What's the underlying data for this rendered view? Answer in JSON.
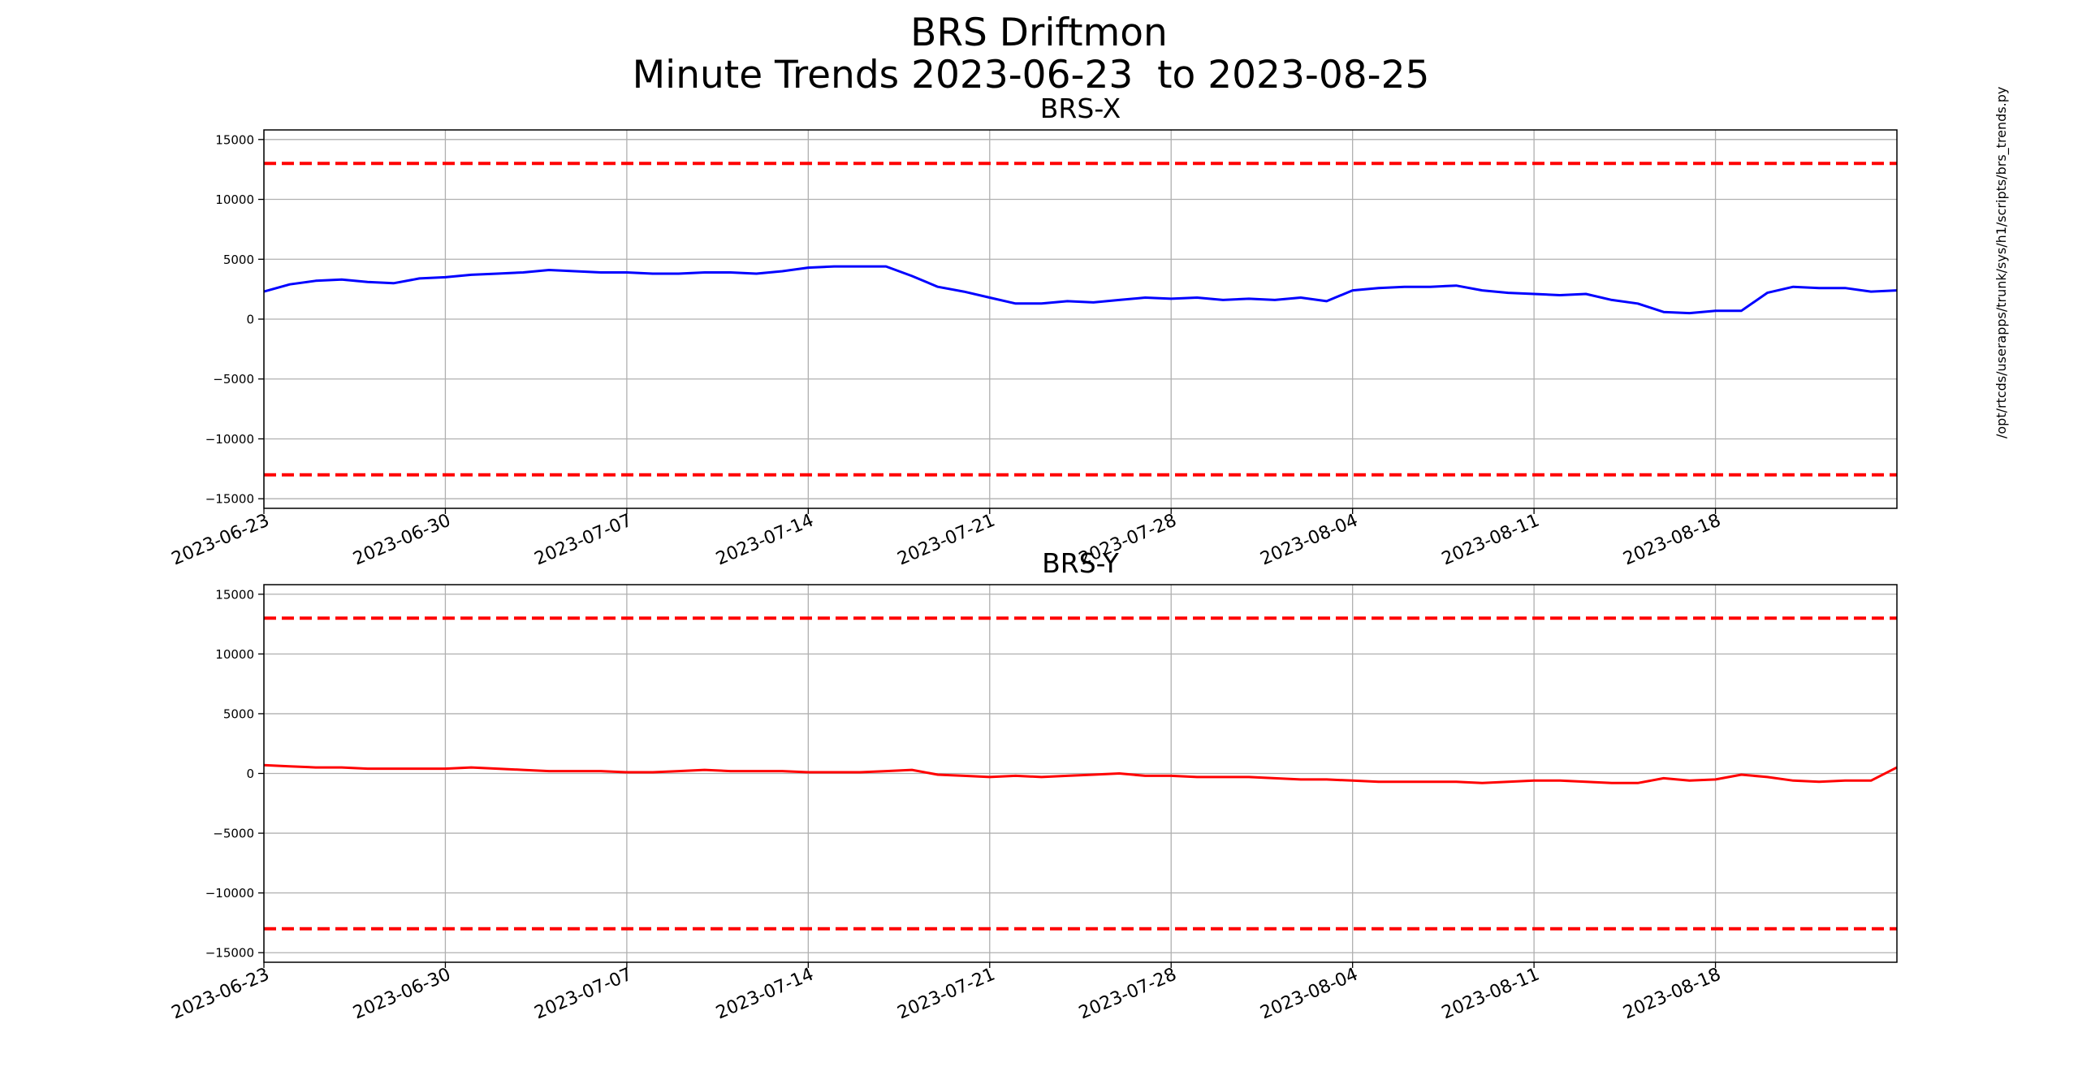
{
  "header": {
    "title": "BRS Driftmon",
    "subtitle": "Minute Trends 2023-06-23  to 2023-08-25"
  },
  "side_note": "/opt/rtcds/userapps/trunk/sys/h1/scripts/brs_trends.py",
  "colors": {
    "brs_x_line": "#0000ff",
    "brs_y_line": "#ff0000",
    "threshold": "#ff0000",
    "grid": "#b0b0b0"
  },
  "chart_data": [
    {
      "type": "line",
      "title": "BRS-X",
      "xlabel": "",
      "ylabel": "",
      "x_ticks": [
        "2023-06-23",
        "2023-06-30",
        "2023-07-07",
        "2023-07-14",
        "2023-07-21",
        "2023-07-28",
        "2023-08-04",
        "2023-08-11",
        "2023-08-18"
      ],
      "y_ticks": [
        15000,
        10000,
        5000,
        0,
        -5000,
        -10000,
        -15000
      ],
      "xlim": [
        "2023-06-23",
        "2023-08-25"
      ],
      "ylim": [
        -15800,
        15800
      ],
      "grid": true,
      "thresholds": [
        13000,
        -13000
      ],
      "series": [
        {
          "color": "#0000ff",
          "x": [
            "2023-06-23",
            "2023-06-24",
            "2023-06-25",
            "2023-06-26",
            "2023-06-27",
            "2023-06-28",
            "2023-06-29",
            "2023-06-30",
            "2023-07-01",
            "2023-07-02",
            "2023-07-03",
            "2023-07-04",
            "2023-07-05",
            "2023-07-06",
            "2023-07-07",
            "2023-07-08",
            "2023-07-09",
            "2023-07-10",
            "2023-07-11",
            "2023-07-12",
            "2023-07-13",
            "2023-07-14",
            "2023-07-15",
            "2023-07-16",
            "2023-07-17",
            "2023-07-18",
            "2023-07-19",
            "2023-07-20",
            "2023-07-21",
            "2023-07-22",
            "2023-07-23",
            "2023-07-24",
            "2023-07-25",
            "2023-07-26",
            "2023-07-27",
            "2023-07-28",
            "2023-07-29",
            "2023-07-30",
            "2023-07-31",
            "2023-08-01",
            "2023-08-02",
            "2023-08-03",
            "2023-08-04",
            "2023-08-05",
            "2023-08-06",
            "2023-08-07",
            "2023-08-08",
            "2023-08-09",
            "2023-08-10",
            "2023-08-11",
            "2023-08-12",
            "2023-08-13",
            "2023-08-14",
            "2023-08-15",
            "2023-08-16",
            "2023-08-17",
            "2023-08-18",
            "2023-08-19",
            "2023-08-20",
            "2023-08-21",
            "2023-08-22",
            "2023-08-23",
            "2023-08-24",
            "2023-08-25"
          ],
          "values": [
            2300,
            2900,
            3200,
            3300,
            3100,
            3000,
            3400,
            3500,
            3700,
            3800,
            3900,
            4100,
            4000,
            3900,
            3900,
            3800,
            3800,
            3900,
            3900,
            3800,
            4000,
            4300,
            4400,
            4400,
            4400,
            3600,
            2700,
            2300,
            1800,
            1300,
            1300,
            1500,
            1400,
            1600,
            1800,
            1700,
            1800,
            1600,
            1700,
            1600,
            1800,
            1500,
            2400,
            2600,
            2700,
            2700,
            2800,
            2400,
            2200,
            2100,
            2000,
            2100,
            1600,
            1300,
            600,
            500,
            700,
            700,
            2200,
            2700,
            2600,
            2600,
            2300,
            2400
          ]
        }
      ]
    },
    {
      "type": "line",
      "title": "BRS-Y",
      "xlabel": "",
      "ylabel": "",
      "x_ticks": [
        "2023-06-23",
        "2023-06-30",
        "2023-07-07",
        "2023-07-14",
        "2023-07-21",
        "2023-07-28",
        "2023-08-04",
        "2023-08-11",
        "2023-08-18"
      ],
      "y_ticks": [
        15000,
        10000,
        5000,
        0,
        -5000,
        -10000,
        -15000
      ],
      "xlim": [
        "2023-06-23",
        "2023-08-25"
      ],
      "ylim": [
        -15800,
        15800
      ],
      "grid": true,
      "thresholds": [
        13000,
        -13000
      ],
      "series": [
        {
          "color": "#ff0000",
          "x": [
            "2023-06-23",
            "2023-06-24",
            "2023-06-25",
            "2023-06-26",
            "2023-06-27",
            "2023-06-28",
            "2023-06-29",
            "2023-06-30",
            "2023-07-01",
            "2023-07-02",
            "2023-07-03",
            "2023-07-04",
            "2023-07-05",
            "2023-07-06",
            "2023-07-07",
            "2023-07-08",
            "2023-07-09",
            "2023-07-10",
            "2023-07-11",
            "2023-07-12",
            "2023-07-13",
            "2023-07-14",
            "2023-07-15",
            "2023-07-16",
            "2023-07-17",
            "2023-07-18",
            "2023-07-19",
            "2023-07-20",
            "2023-07-21",
            "2023-07-22",
            "2023-07-23",
            "2023-07-24",
            "2023-07-25",
            "2023-07-26",
            "2023-07-27",
            "2023-07-28",
            "2023-07-29",
            "2023-07-30",
            "2023-07-31",
            "2023-08-01",
            "2023-08-02",
            "2023-08-03",
            "2023-08-04",
            "2023-08-05",
            "2023-08-06",
            "2023-08-07",
            "2023-08-08",
            "2023-08-09",
            "2023-08-10",
            "2023-08-11",
            "2023-08-12",
            "2023-08-13",
            "2023-08-14",
            "2023-08-15",
            "2023-08-16",
            "2023-08-17",
            "2023-08-18",
            "2023-08-19",
            "2023-08-20",
            "2023-08-21",
            "2023-08-22",
            "2023-08-23",
            "2023-08-24",
            "2023-08-25"
          ],
          "values": [
            700,
            600,
            500,
            500,
            400,
            400,
            400,
            400,
            500,
            400,
            300,
            200,
            200,
            200,
            100,
            100,
            200,
            300,
            200,
            200,
            200,
            100,
            100,
            100,
            200,
            300,
            -100,
            -200,
            -300,
            -200,
            -300,
            -200,
            -100,
            0,
            -200,
            -200,
            -300,
            -300,
            -300,
            -400,
            -500,
            -500,
            -600,
            -700,
            -700,
            -700,
            -700,
            -800,
            -700,
            -600,
            -600,
            -700,
            -800,
            -800,
            -400,
            -600,
            -500,
            -100,
            -300,
            -600,
            -700,
            -600,
            -600,
            500
          ]
        }
      ]
    }
  ]
}
